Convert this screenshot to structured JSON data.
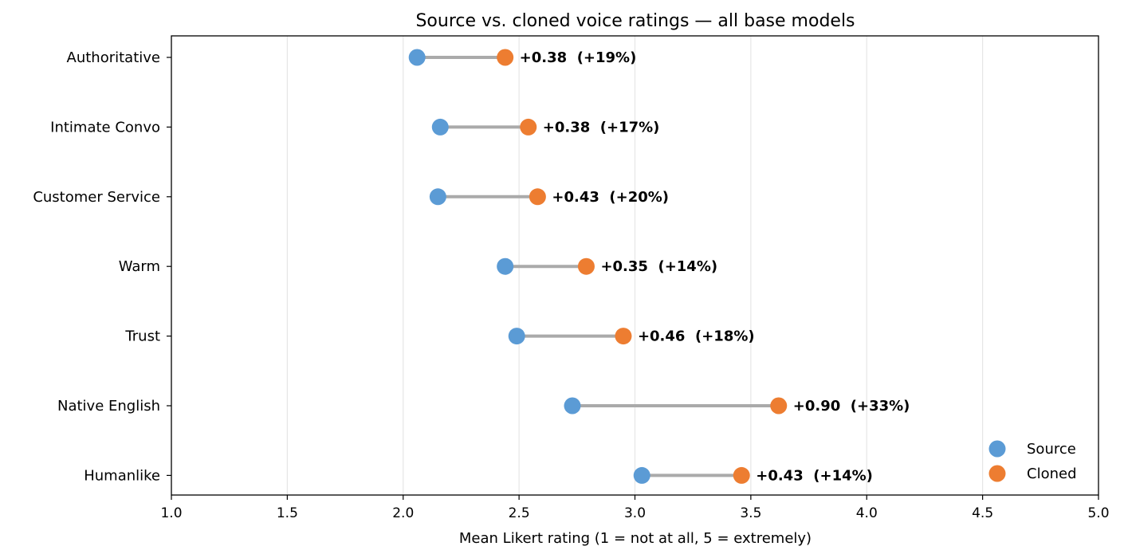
{
  "chart_data": {
    "type": "dumbbell",
    "title": "Source vs. cloned voice ratings — all base models",
    "xlabel": "Mean Likert rating  (1 = not at all,  5 = extremely)",
    "ylabel": "",
    "xlim": [
      1.0,
      5.0
    ],
    "xticks": [
      "1.0",
      "1.5",
      "2.0",
      "2.5",
      "3.0",
      "3.5",
      "4.0",
      "4.5",
      "5.0"
    ],
    "grid": "vertical",
    "legend_position": "bottom-right",
    "categories": [
      "Authoritative",
      "Intimate Convo",
      "Customer Service",
      "Warm",
      "Trust",
      "Native English",
      "Humanlike"
    ],
    "series": [
      {
        "name": "Source",
        "color": "#5b9bd5",
        "values": [
          2.06,
          2.16,
          2.15,
          2.44,
          2.49,
          2.73,
          3.03
        ]
      },
      {
        "name": "Cloned",
        "color": "#ed7d31",
        "values": [
          2.44,
          2.54,
          2.58,
          2.79,
          2.95,
          3.62,
          3.46
        ]
      }
    ],
    "annotations": [
      "+0.38  (+19%)",
      "+0.38  (+17%)",
      "+0.43  (+20%)",
      "+0.35  (+14%)",
      "+0.46  (+18%)",
      "+0.90  (+33%)",
      "+0.43  (+14%)"
    ],
    "connector_color": "#aaaaaa"
  }
}
